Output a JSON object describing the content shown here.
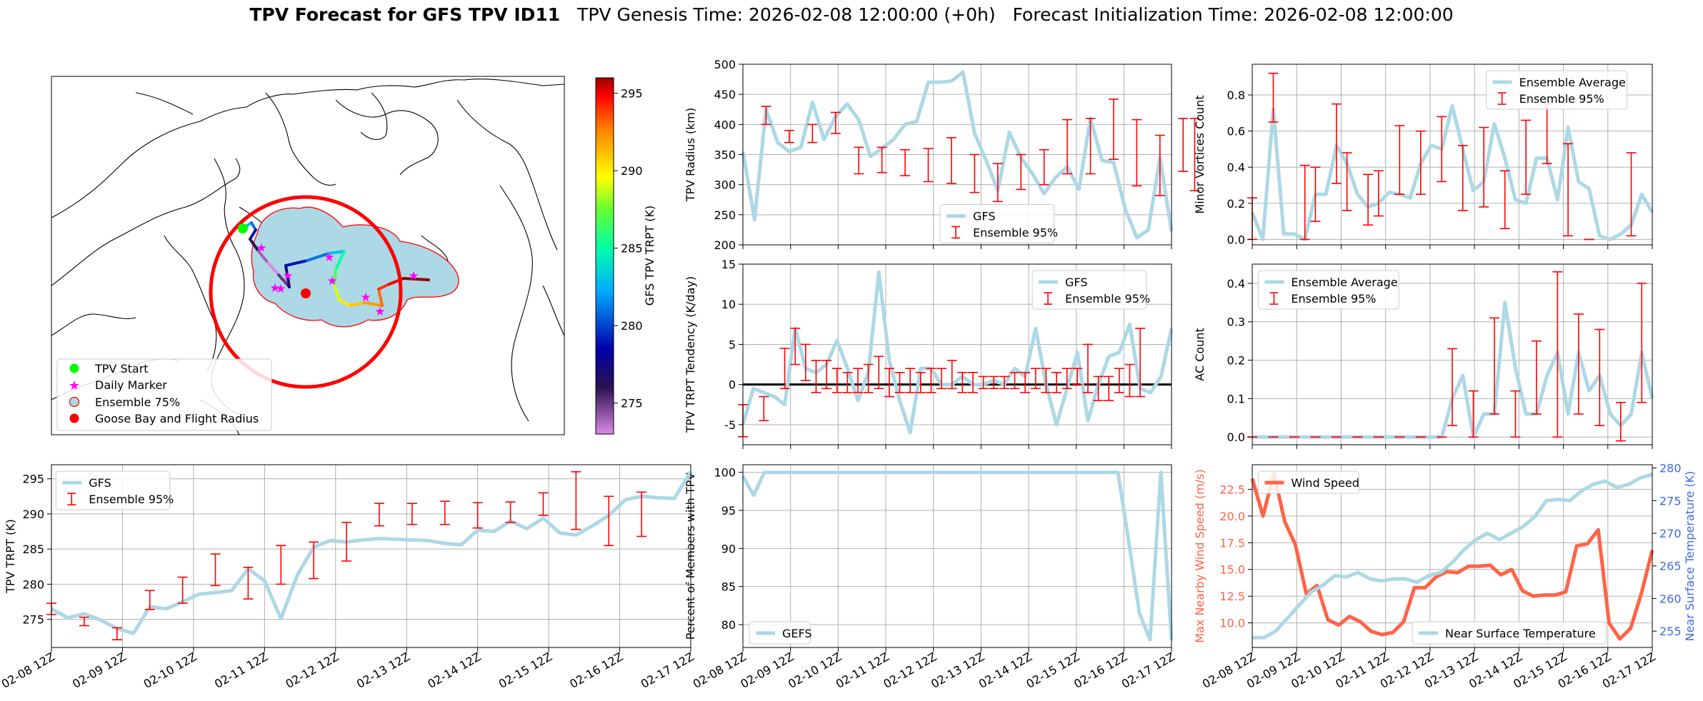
{
  "figure": {
    "title_bold": "TPV Forecast for GFS TPV ID11",
    "title_genesis": "TPV Genesis Time: 2026-02-08 12:00:00 (+0h)",
    "title_init": "Forecast Initialization Time: 2026-02-08 12:00:00"
  },
  "colors": {
    "gfs": "#add8e6",
    "ens": "#ff0000",
    "wind": "#ff6347",
    "temp": "#4169e1",
    "flight": "#ff0000",
    "start": "#00ff00",
    "marker": "#ff00ff"
  },
  "time_ticks": [
    "02-08 12Z",
    "02-09 12Z",
    "02-10 12Z",
    "02-11 12Z",
    "02-12 12Z",
    "02-13 12Z",
    "02-14 12Z",
    "02-15 12Z",
    "02-16 12Z",
    "02-17 12Z"
  ],
  "map": {
    "legend": [
      "TPV Start",
      "Daily Marker",
      "Ensemble 75%",
      "Goose Bay and Flight Radius"
    ],
    "colorbar_label": "GFS TPV TRPT (K)",
    "colorbar_ticks": [
      275,
      280,
      285,
      290,
      295
    ],
    "colorbar_range": [
      273,
      296
    ],
    "track_trpt": [
      283,
      281,
      279,
      276,
      274,
      273,
      275,
      277,
      279,
      281,
      283,
      285,
      287,
      289,
      290,
      291,
      292,
      293,
      294,
      295,
      296
    ]
  },
  "chart_data": [
    {
      "id": "radius",
      "type": "line",
      "ylabel": "TPV Radius (km)",
      "ylim": [
        200,
        500
      ],
      "yticks": [
        200,
        250,
        300,
        350,
        400,
        450,
        500
      ],
      "legend": [
        "GFS",
        "Ensemble 95%"
      ],
      "series": [
        {
          "name": "GFS",
          "values": [
            355,
            242,
            425,
            370,
            355,
            362,
            437,
            375,
            413,
            434,
            408,
            347,
            360,
            375,
            400,
            405,
            470,
            470,
            472,
            487,
            385,
            340,
            290,
            387,
            345,
            318,
            285,
            312,
            330,
            292,
            410,
            340,
            337,
            260,
            212,
            225,
            345,
            222
          ]
        }
      ],
      "errorbars": [
        {
          "i": 2,
          "lo": 400,
          "hi": 430
        },
        {
          "i": 4,
          "lo": 370,
          "hi": 390
        },
        {
          "i": 6,
          "lo": 370,
          "hi": 400
        },
        {
          "i": 8,
          "lo": 385,
          "hi": 420
        },
        {
          "i": 10,
          "lo": 318,
          "hi": 362
        },
        {
          "i": 12,
          "lo": 320,
          "hi": 362
        },
        {
          "i": 14,
          "lo": 315,
          "hi": 358
        },
        {
          "i": 16,
          "lo": 305,
          "hi": 360
        },
        {
          "i": 18,
          "lo": 302,
          "hi": 378
        },
        {
          "i": 20,
          "lo": 287,
          "hi": 350
        },
        {
          "i": 22,
          "lo": 272,
          "hi": 335
        },
        {
          "i": 24,
          "lo": 292,
          "hi": 350
        },
        {
          "i": 26,
          "lo": 300,
          "hi": 358
        },
        {
          "i": 28,
          "lo": 318,
          "hi": 408
        },
        {
          "i": 30,
          "lo": 318,
          "hi": 410
        },
        {
          "i": 32,
          "lo": 342,
          "hi": 442
        },
        {
          "i": 34,
          "lo": 298,
          "hi": 408
        },
        {
          "i": 36,
          "lo": 282,
          "hi": 382
        },
        {
          "i": 38,
          "lo": 322,
          "hi": 410
        },
        {
          "i": 39,
          "lo": 290,
          "hi": 410
        }
      ]
    },
    {
      "id": "tendency",
      "type": "line",
      "ylabel": "TPV TRPT Tendency (K/day)",
      "ylim": [
        -7.5,
        15
      ],
      "yticks": [
        -5,
        0,
        5,
        10,
        15
      ],
      "legend": [
        "GFS",
        "Ensemble 95%"
      ],
      "series": [
        {
          "name": "GFS",
          "values": [
            -5,
            -0.5,
            -1,
            -1.5,
            -2.5,
            7,
            2,
            1.5,
            2.5,
            5.5,
            2,
            -2,
            1.5,
            14,
            3,
            -2,
            -6,
            2,
            2,
            0,
            0,
            1,
            0,
            0,
            0.5,
            0,
            2,
            1,
            7,
            0,
            -5,
            -0.5,
            4,
            -4.5,
            0,
            3.5,
            4,
            7.5,
            -0.5,
            -1,
            1,
            7
          ]
        }
      ],
      "errorbars": [
        {
          "i": 0,
          "lo": -6.5,
          "hi": -2.5
        },
        {
          "i": 2,
          "lo": -4.5,
          "hi": -1.5
        },
        {
          "i": 4,
          "lo": -0.5,
          "hi": 4.5
        },
        {
          "i": 5,
          "lo": 2.5,
          "hi": 7
        },
        {
          "i": 6,
          "lo": 0.5,
          "hi": 5
        },
        {
          "i": 7,
          "lo": -1,
          "hi": 3
        },
        {
          "i": 8,
          "lo": -0.5,
          "hi": 3
        },
        {
          "i": 9,
          "lo": -1,
          "hi": 2
        },
        {
          "i": 10,
          "lo": -1,
          "hi": 1.5
        },
        {
          "i": 11,
          "lo": -1,
          "hi": 2
        },
        {
          "i": 12,
          "lo": -1,
          "hi": 2.5
        },
        {
          "i": 13,
          "lo": -0.5,
          "hi": 3.5
        },
        {
          "i": 14,
          "lo": -1.5,
          "hi": 2
        },
        {
          "i": 15,
          "lo": -1,
          "hi": 1.5
        },
        {
          "i": 16,
          "lo": -1,
          "hi": 2
        },
        {
          "i": 17,
          "lo": -1,
          "hi": 1.5
        },
        {
          "i": 18,
          "lo": -1,
          "hi": 2
        },
        {
          "i": 19,
          "lo": -0.5,
          "hi": 2
        },
        {
          "i": 20,
          "lo": -0.5,
          "hi": 3
        },
        {
          "i": 21,
          "lo": -1,
          "hi": 1.5
        },
        {
          "i": 22,
          "lo": -1,
          "hi": 1.5
        },
        {
          "i": 23,
          "lo": -0.5,
          "hi": 1
        },
        {
          "i": 24,
          "lo": -0.5,
          "hi": 1
        },
        {
          "i": 25,
          "lo": -0.5,
          "hi": 1
        },
        {
          "i": 26,
          "lo": -0.5,
          "hi": 1.5
        },
        {
          "i": 27,
          "lo": -1,
          "hi": 1.5
        },
        {
          "i": 28,
          "lo": -0.5,
          "hi": 2
        },
        {
          "i": 29,
          "lo": -1,
          "hi": 2
        },
        {
          "i": 30,
          "lo": -1,
          "hi": 1.5
        },
        {
          "i": 31,
          "lo": -0.5,
          "hi": 2
        },
        {
          "i": 32,
          "lo": 0,
          "hi": 2
        },
        {
          "i": 33,
          "lo": -1,
          "hi": 5
        },
        {
          "i": 34,
          "lo": -2,
          "hi": 1
        },
        {
          "i": 35,
          "lo": -2,
          "hi": 1
        },
        {
          "i": 36,
          "lo": -1,
          "hi": 2
        },
        {
          "i": 37,
          "lo": -1.5,
          "hi": 2.5
        },
        {
          "i": 38,
          "lo": -1.5,
          "hi": 7
        }
      ]
    },
    {
      "id": "percent",
      "type": "line",
      "ylabel": "Percent of Members with TPV",
      "ylim": [
        77,
        101
      ],
      "yticks": [
        80,
        85,
        90,
        95,
        100
      ],
      "legend": [
        "GEFS"
      ],
      "series": [
        {
          "name": "GEFS",
          "values": [
            99.5,
            97,
            100,
            100,
            100,
            100,
            100,
            100,
            100,
            100,
            100,
            100,
            100,
            100,
            100,
            100,
            100,
            100,
            100,
            100,
            100,
            100,
            100,
            100,
            100,
            100,
            100,
            100,
            100,
            100,
            100,
            100,
            100,
            100,
            100,
            100,
            91,
            81.5,
            78,
            100,
            78
          ]
        }
      ]
    },
    {
      "id": "minor",
      "type": "line",
      "ylabel": "Minor Vortices Count",
      "ylim": [
        -0.03,
        0.97
      ],
      "yticks": [
        0.0,
        0.2,
        0.4,
        0.6,
        0.8
      ],
      "legend": [
        "Ensemble Average",
        "Ensemble 95%"
      ],
      "series": [
        {
          "name": "Ensemble Average",
          "values": [
            0.15,
            0,
            0.72,
            0.03,
            0.03,
            0,
            0.25,
            0.25,
            0.52,
            0.42,
            0.25,
            0.18,
            0.2,
            0.26,
            0.25,
            0.23,
            0.42,
            0.52,
            0.5,
            0.74,
            0.5,
            0.27,
            0.32,
            0.64,
            0.45,
            0.22,
            0.2,
            0.45,
            0.45,
            0.22,
            0.62,
            0.32,
            0.28,
            0.02,
            0,
            0.03,
            0.08,
            0.25,
            0.15
          ]
        }
      ],
      "errorbars": [
        {
          "i": 0,
          "lo": 0,
          "hi": 0.23
        },
        {
          "i": 2,
          "lo": 0.65,
          "hi": 0.92
        },
        {
          "i": 5,
          "lo": 0,
          "hi": 0.41
        },
        {
          "i": 6,
          "lo": 0.1,
          "hi": 0.4
        },
        {
          "i": 8,
          "lo": 0.31,
          "hi": 0.75
        },
        {
          "i": 9,
          "lo": 0.16,
          "hi": 0.48
        },
        {
          "i": 11,
          "lo": 0.08,
          "hi": 0.36
        },
        {
          "i": 12,
          "lo": 0.13,
          "hi": 0.38
        },
        {
          "i": 14,
          "lo": 0.25,
          "hi": 0.63
        },
        {
          "i": 16,
          "lo": 0.25,
          "hi": 0.6
        },
        {
          "i": 18,
          "lo": 0.32,
          "hi": 0.68
        },
        {
          "i": 20,
          "lo": 0.16,
          "hi": 0.52
        },
        {
          "i": 22,
          "lo": 0.18,
          "hi": 0.62
        },
        {
          "i": 24,
          "lo": 0.06,
          "hi": 0.38
        },
        {
          "i": 26,
          "lo": 0.25,
          "hi": 0.66
        },
        {
          "i": 28,
          "lo": 0.42,
          "hi": 0.75
        },
        {
          "i": 30,
          "lo": 0.02,
          "hi": 0.53
        },
        {
          "i": 32,
          "lo": 0,
          "hi": 0
        },
        {
          "i": 36,
          "lo": 0.02,
          "hi": 0.48
        }
      ]
    },
    {
      "id": "ac",
      "type": "line",
      "ylabel": "AC Count",
      "ylim": [
        -0.02,
        0.45
      ],
      "yticks": [
        0.0,
        0.1,
        0.2,
        0.3,
        0.4
      ],
      "legend": [
        "Ensemble Average",
        "Ensemble 95%"
      ],
      "series": [
        {
          "name": "Ensemble Average",
          "values": [
            0,
            0,
            0,
            0,
            0,
            0,
            0,
            0,
            0,
            0,
            0,
            0,
            0,
            0,
            0,
            0,
            0,
            0,
            0,
            0.1,
            0.16,
            0,
            0.06,
            0.06,
            0.35,
            0.18,
            0.06,
            0.06,
            0.16,
            0.22,
            0.06,
            0.22,
            0.12,
            0.16,
            0.06,
            0.03,
            0.06,
            0.22,
            0.1
          ]
        }
      ],
      "errorbars": [
        {
          "i": 0,
          "lo": 0,
          "hi": 0
        },
        {
          "i": 2,
          "lo": 0,
          "hi": 0
        },
        {
          "i": 4,
          "lo": 0,
          "hi": 0
        },
        {
          "i": 6,
          "lo": 0,
          "hi": 0
        },
        {
          "i": 8,
          "lo": 0,
          "hi": 0
        },
        {
          "i": 10,
          "lo": 0,
          "hi": 0
        },
        {
          "i": 12,
          "lo": 0,
          "hi": 0
        },
        {
          "i": 14,
          "lo": 0,
          "hi": 0
        },
        {
          "i": 16,
          "lo": 0,
          "hi": 0
        },
        {
          "i": 18,
          "lo": 0,
          "hi": 0
        },
        {
          "i": 19,
          "lo": 0.03,
          "hi": 0.23
        },
        {
          "i": 21,
          "lo": 0,
          "hi": 0.12
        },
        {
          "i": 23,
          "lo": 0.06,
          "hi": 0.31
        },
        {
          "i": 25,
          "lo": 0,
          "hi": 0.12
        },
        {
          "i": 27,
          "lo": 0.06,
          "hi": 0.25
        },
        {
          "i": 29,
          "lo": 0,
          "hi": 0.43
        },
        {
          "i": 31,
          "lo": 0.06,
          "hi": 0.32
        },
        {
          "i": 33,
          "lo": 0.03,
          "hi": 0.28
        },
        {
          "i": 35,
          "lo": -0.01,
          "hi": 0.09
        },
        {
          "i": 37,
          "lo": 0.09,
          "hi": 0.4
        }
      ]
    },
    {
      "id": "trpt",
      "type": "line",
      "ylabel": "TPV TRPT (K)",
      "ylim": [
        271,
        297
      ],
      "yticks": [
        275,
        280,
        285,
        290,
        295
      ],
      "legend": [
        "GFS",
        "Ensemble 95%"
      ],
      "series": [
        {
          "name": "GFS",
          "values": [
            276.5,
            275.2,
            275.8,
            274.9,
            273.7,
            273,
            276.8,
            276.5,
            277.5,
            278.6,
            278.8,
            279.1,
            282.2,
            280.5,
            275.1,
            281.3,
            285.3,
            286.2,
            286,
            286.3,
            286.5,
            286.4,
            286.3,
            286.2,
            285.8,
            285.6,
            287.7,
            287.5,
            289,
            287.9,
            289.4,
            287.3,
            287,
            288.3,
            289.8,
            292,
            292.5,
            292.3,
            292.2,
            296
          ]
        }
      ],
      "errorbars": [
        {
          "i": 0,
          "lo": 275.7,
          "hi": 277.3
        },
        {
          "i": 2,
          "lo": 274.1,
          "hi": 275.3
        },
        {
          "i": 4,
          "lo": 272.1,
          "hi": 273.8
        },
        {
          "i": 6,
          "lo": 276.4,
          "hi": 279.1
        },
        {
          "i": 8,
          "lo": 277.3,
          "hi": 281
        },
        {
          "i": 10,
          "lo": 279.8,
          "hi": 284.3
        },
        {
          "i": 12,
          "lo": 277.9,
          "hi": 282.4
        },
        {
          "i": 14,
          "lo": 280,
          "hi": 285.5
        },
        {
          "i": 16,
          "lo": 280.8,
          "hi": 286
        },
        {
          "i": 18,
          "lo": 283.3,
          "hi": 288.8
        },
        {
          "i": 20,
          "lo": 288.3,
          "hi": 291.5
        },
        {
          "i": 22,
          "lo": 288.5,
          "hi": 291.5
        },
        {
          "i": 24,
          "lo": 288.5,
          "hi": 291.8
        },
        {
          "i": 26,
          "lo": 288,
          "hi": 291.6
        },
        {
          "i": 28,
          "lo": 288.8,
          "hi": 291.7
        },
        {
          "i": 30,
          "lo": 289.8,
          "hi": 293
        },
        {
          "i": 32,
          "lo": 287.8,
          "hi": 296
        },
        {
          "i": 34,
          "lo": 285.5,
          "hi": 292.5
        },
        {
          "i": 36,
          "lo": 286.8,
          "hi": 293.1
        }
      ]
    },
    {
      "id": "wind",
      "type": "line",
      "ylabel": "Max Nearby Wind Speed (m/s)",
      "ylabel2": "Near Surface Temperature (K)",
      "ylim": [
        7.7,
        24.8
      ],
      "yticks": [
        10.0,
        12.5,
        15.0,
        17.5,
        20.0,
        22.5
      ],
      "ylim2": [
        252.5,
        280.5
      ],
      "yticks2": [
        255,
        260,
        265,
        270,
        275,
        280
      ],
      "legend": [
        "Wind Speed"
      ],
      "legend2": [
        "Near Surface Temperature"
      ],
      "series": [
        {
          "name": "Wind Speed",
          "values": [
            23.5,
            20,
            24,
            19.5,
            17.3,
            12.7,
            13.5,
            10.3,
            9.8,
            10.6,
            10.1,
            9.2,
            8.9,
            9.1,
            10.1,
            13.3,
            13.3,
            14.3,
            14.8,
            14.7,
            15.3,
            15.3,
            15.4,
            14.5,
            15,
            13,
            12.5,
            12.6,
            12.6,
            12.9,
            17.2,
            17.4,
            18.7,
            10,
            8.5,
            9.5,
            12.8,
            16.8
          ]
        },
        {
          "name": "Near Surface Temperature",
          "values": [
            254,
            254,
            255,
            257,
            259,
            261,
            262,
            263.5,
            263.3,
            264,
            263,
            262.7,
            263,
            263,
            262.5,
            263.5,
            264,
            265.5,
            267.5,
            269,
            270,
            269,
            270,
            271,
            272.5,
            275,
            275.2,
            275,
            276.5,
            277.5,
            278,
            277,
            277.5,
            278.5,
            279
          ]
        }
      ]
    }
  ]
}
